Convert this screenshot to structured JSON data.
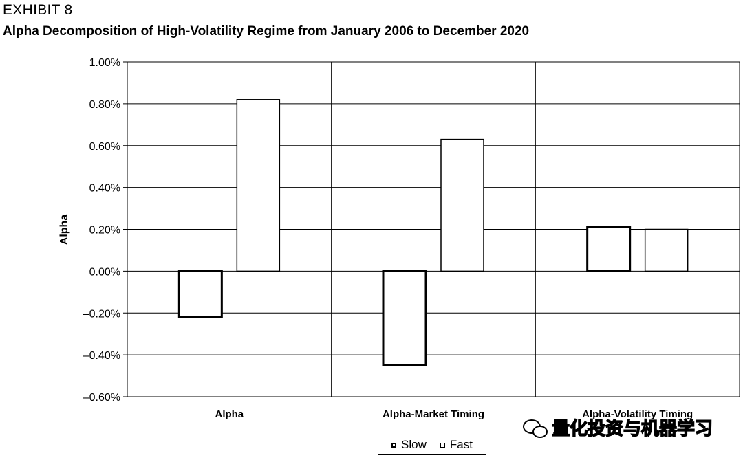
{
  "exhibit": "EXHIBIT 8",
  "title": "Alpha Decomposition of High-Volatility Regime from January 2006 to December 2020",
  "watermark": "量化投资与机器学习",
  "chart_data": {
    "type": "bar",
    "title": "Alpha Decomposition of High-Volatility Regime from January 2006 to December 2020",
    "xlabel": "",
    "ylabel": "Alpha",
    "categories": [
      "Alpha",
      "Alpha-Market Timing",
      "Alpha-Volatility Timing"
    ],
    "series": [
      {
        "name": "Slow",
        "values": [
          -0.22,
          -0.45,
          0.21
        ],
        "stroke_width": 3
      },
      {
        "name": "Fast",
        "values": [
          0.82,
          0.63,
          0.2
        ],
        "stroke_width": 1.5
      }
    ],
    "ylim": [
      -0.6,
      1.0
    ],
    "yticks": [
      1.0,
      0.8,
      0.6,
      0.4,
      0.2,
      0.0,
      -0.2,
      -0.4,
      -0.6
    ],
    "ytick_labels": [
      "1.00%",
      "0.80%",
      "0.60%",
      "0.40%",
      "0.20%",
      "0.00%",
      "–0.20%",
      "–0.40%",
      "–0.60%"
    ],
    "grid": true,
    "legend_position": "bottom-center",
    "bar_fill": "#ffffff",
    "bar_stroke": "#000000"
  }
}
